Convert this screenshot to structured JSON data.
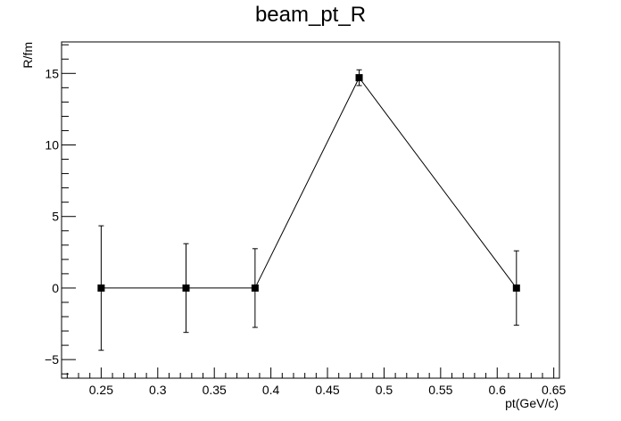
{
  "chart_data": {
    "type": "scatter",
    "title": "beam_pt_R",
    "xlabel": "pt(GeV/c)",
    "ylabel": "R/fm",
    "xlim": [
      0.215,
      0.655
    ],
    "ylim": [
      -6.3,
      17.2
    ],
    "x_ticks": [
      0.25,
      0.3,
      0.35,
      0.4,
      0.45,
      0.5,
      0.55,
      0.6,
      0.65
    ],
    "x_tick_labels": [
      "0.25",
      "0.3",
      "0.35",
      "0.4",
      "0.45",
      "0.5",
      "0.55",
      "0.6",
      "0.65"
    ],
    "x_minor_step": 0.01,
    "y_ticks": [
      -5,
      0,
      5,
      10,
      15
    ],
    "y_tick_labels": [
      "−5",
      "0",
      "5",
      "10",
      "15"
    ],
    "y_minor_step": 1,
    "grid": false,
    "connect_points": true,
    "marker": "square",
    "color": "#000000",
    "series": [
      {
        "x": [
          0.25,
          0.325,
          0.386,
          0.478,
          0.617
        ],
        "y": [
          0,
          0,
          0,
          14.7,
          0
        ],
        "y_err": [
          4.35,
          3.1,
          2.75,
          0.55,
          2.6
        ]
      }
    ]
  }
}
